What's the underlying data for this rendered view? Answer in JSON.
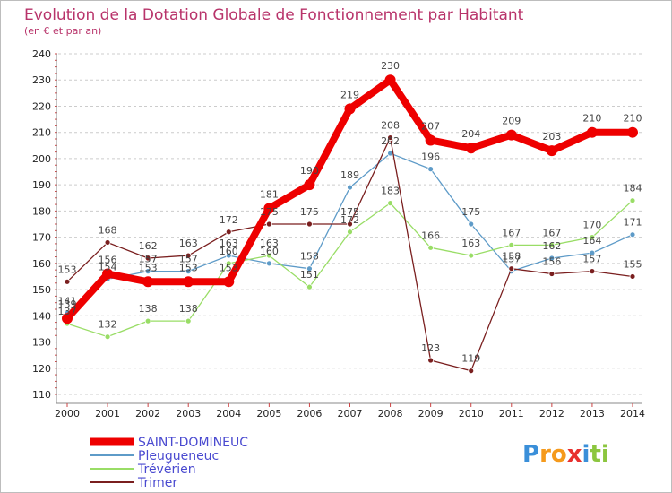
{
  "colors": {
    "title": "#b8336a",
    "grid": "#cccccc",
    "legend_text": "#4a4ad0"
  },
  "chart_data": {
    "type": "line",
    "title": "Evolution de la Dotation Globale de Fonctionnement par Habitant",
    "subtitle": "(en € et par an)",
    "xlabel": "",
    "ylabel": "",
    "x": [
      "2000",
      "2001",
      "2002",
      "2003",
      "2004",
      "2005",
      "2006",
      "2007",
      "2008",
      "2009",
      "2010",
      "2011",
      "2012",
      "2013",
      "2014"
    ],
    "ylim": [
      110,
      240
    ],
    "yticks": [
      110,
      120,
      130,
      140,
      150,
      160,
      170,
      180,
      190,
      200,
      210,
      220,
      230,
      240
    ],
    "grid": "horizontal-dashed",
    "legend_position": "bottom-left",
    "series": [
      {
        "name": "SAINT-DOMINEUC",
        "color": "#ee0000",
        "width": 8,
        "values": [
          139,
          156,
          153,
          153,
          153,
          181,
          190,
          219,
          230,
          207,
          204,
          209,
          203,
          210,
          210
        ]
      },
      {
        "name": "Pleugueneuc",
        "color": "#5e9bc8",
        "width": 1.3,
        "values": [
          141,
          154,
          157,
          157,
          163,
          160,
          158,
          189,
          202,
          196,
          175,
          157,
          162,
          164,
          171
        ]
      },
      {
        "name": "Trévérien",
        "color": "#99dd66",
        "width": 1.3,
        "values": [
          137,
          132,
          138,
          138,
          160,
          163,
          151,
          172,
          183,
          166,
          163,
          167,
          167,
          170,
          184
        ]
      },
      {
        "name": "Trimer",
        "color": "#7a1f1f",
        "width": 1.3,
        "values": [
          153,
          168,
          162,
          163,
          172,
          175,
          175,
          175,
          208,
          123,
          119,
          158,
          156,
          157,
          155
        ]
      }
    ]
  },
  "logo": {
    "letters": [
      {
        "ch": "P",
        "color": "#3a8fd9"
      },
      {
        "ch": "r",
        "color": "#f59a1c"
      },
      {
        "ch": "o",
        "color": "#f59a1c"
      },
      {
        "ch": "x",
        "color": "#e8312f"
      },
      {
        "ch": "i",
        "color": "#3a8fd9"
      },
      {
        "ch": "t",
        "color": "#8cc63f"
      },
      {
        "ch": "i",
        "color": "#8cc63f"
      }
    ]
  }
}
